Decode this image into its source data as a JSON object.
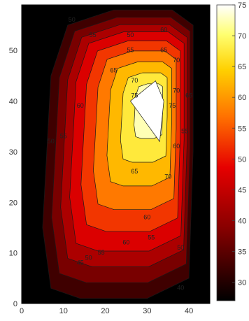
{
  "chart_data": {
    "type": "heatmap",
    "title": "",
    "xlabel": "",
    "ylabel": "",
    "xlim": [
      0,
      45
    ],
    "ylim": [
      0,
      59
    ],
    "x_ticks": [
      "0",
      "10",
      "20",
      "30",
      "40"
    ],
    "y_ticks": [
      "0",
      "10",
      "20",
      "30",
      "40",
      "50"
    ],
    "colorbar": {
      "colormap": "hot",
      "range": [
        27,
        75
      ],
      "ticks": [
        "30",
        "35",
        "40",
        "45",
        "50",
        "55",
        "60",
        "65",
        "70",
        "75"
      ]
    },
    "contour_levels": [
      30,
      35,
      40,
      45,
      50,
      55,
      60,
      65,
      70,
      75
    ],
    "peak": {
      "x": 32,
      "y": 40,
      "value": 75
    },
    "contour_labels": [
      {
        "text": "50",
        "x": 12,
        "y": 56
      },
      {
        "text": "55",
        "x": 17,
        "y": 53
      },
      {
        "text": "50",
        "x": 26,
        "y": 53
      },
      {
        "text": "55",
        "x": 26,
        "y": 50
      },
      {
        "text": "60",
        "x": 34,
        "y": 54
      },
      {
        "text": "65",
        "x": 34,
        "y": 50
      },
      {
        "text": "70",
        "x": 37,
        "y": 48
      },
      {
        "text": "65",
        "x": 22,
        "y": 46
      },
      {
        "text": "70",
        "x": 27,
        "y": 44
      },
      {
        "text": "75",
        "x": 27,
        "y": 41
      },
      {
        "text": "75",
        "x": 36,
        "y": 39
      },
      {
        "text": "70",
        "x": 37,
        "y": 42
      },
      {
        "text": "65",
        "x": 40,
        "y": 41
      },
      {
        "text": "60",
        "x": 14,
        "y": 39
      },
      {
        "text": "55",
        "x": 10,
        "y": 33
      },
      {
        "text": "50",
        "x": 7,
        "y": 32
      },
      {
        "text": "55",
        "x": 39,
        "y": 34
      },
      {
        "text": "60",
        "x": 37,
        "y": 31
      },
      {
        "text": "65",
        "x": 27,
        "y": 26
      },
      {
        "text": "70",
        "x": 35,
        "y": 25
      },
      {
        "text": "60",
        "x": 30,
        "y": 17
      },
      {
        "text": "55",
        "x": 31,
        "y": 13
      },
      {
        "text": "50",
        "x": 38,
        "y": 11
      },
      {
        "text": "60",
        "x": 25,
        "y": 12
      },
      {
        "text": "55",
        "x": 19,
        "y": 10
      },
      {
        "text": "50",
        "x": 16,
        "y": 9
      },
      {
        "text": "45",
        "x": 14,
        "y": 8
      },
      {
        "text": "40",
        "x": 38,
        "y": 3
      }
    ]
  }
}
